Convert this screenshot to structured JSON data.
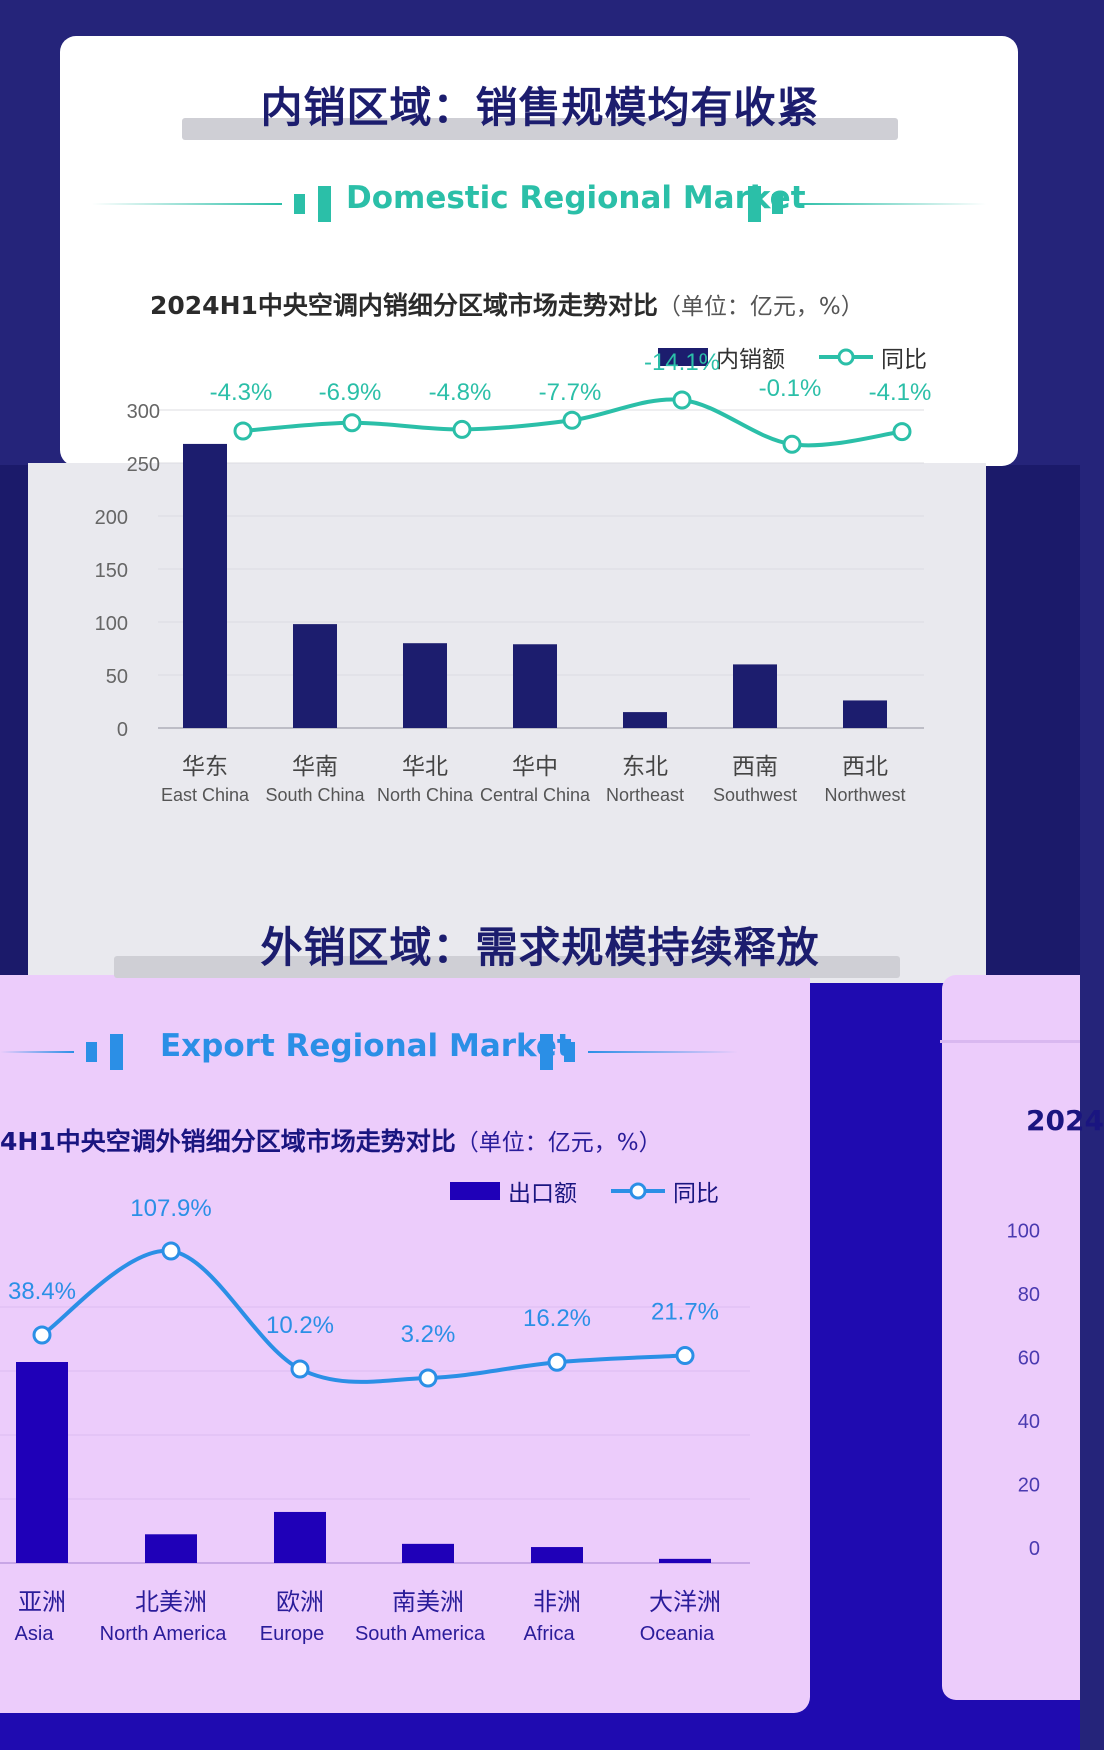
{
  "domestic": {
    "heading": "内销区域：销售规模均有收紧",
    "subheading": "Domestic Regional Market",
    "chart_title": "2024H1中央空调内销细分区域市场走势对比",
    "chart_unit": "（单位：亿元，%）",
    "legend_bar": "内销额",
    "legend_line": "同比"
  },
  "export": {
    "heading": "外销区域：需求规模持续释放",
    "subheading": "Export Regional Market",
    "chart_title": "4H1中央空调外销细分区域市场走势对比",
    "chart_unit": "（单位：亿元，%）",
    "legend_bar": "出口额",
    "legend_line": "同比",
    "right_title": "2024"
  },
  "colors": {
    "domestic_bar": "#1c1d6e",
    "domestic_line": "#2bbfa8",
    "export_bar": "#1f00b8",
    "export_line": "#2b8fe6"
  },
  "chart_data": [
    {
      "type": "bar",
      "ylim": [
        0,
        300
      ],
      "yticks": [
        0,
        50,
        100,
        150,
        200,
        250,
        300
      ],
      "grid": true,
      "legend": "top-right",
      "categories": [
        {
          "cn": "华东",
          "en": "East China"
        },
        {
          "cn": "华南",
          "en": "South China"
        },
        {
          "cn": "华北",
          "en": "North China"
        },
        {
          "cn": "华中",
          "en": "Central China"
        },
        {
          "cn": "东北",
          "en": "Northeast"
        },
        {
          "cn": "西南",
          "en": "Southwest"
        },
        {
          "cn": "西北",
          "en": "Northwest"
        }
      ],
      "series": [
        {
          "name": "内销额",
          "values": [
            268,
            98,
            80,
            79,
            15,
            60,
            26
          ]
        },
        {
          "name": "同比",
          "values": [
            -4.3,
            -6.9,
            -4.8,
            -7.7,
            -14.1,
            -0.1,
            -4.1
          ],
          "labels": [
            "-4.3%",
            "-6.9%",
            "-4.8%",
            "-7.7%",
            "-14.1%",
            "-0.1%",
            "-4.1%"
          ]
        }
      ]
    },
    {
      "type": "bar",
      "legend": "top-right",
      "categories": [
        {
          "cn": "亚洲",
          "en": "Asia"
        },
        {
          "cn": "北美洲",
          "en": "North America"
        },
        {
          "cn": "欧洲",
          "en": "Europe"
        },
        {
          "cn": "南美洲",
          "en": "South America"
        },
        {
          "cn": "非洲",
          "en": "Africa"
        },
        {
          "cn": "大洋洲",
          "en": "Oceania"
        }
      ],
      "series": [
        {
          "name": "出口额",
          "values": [
            63,
            9,
            16,
            6,
            5,
            1.3
          ]
        },
        {
          "name": "同比",
          "values": [
            38.4,
            107.9,
            10.2,
            3.2,
            16.2,
            21.7
          ],
          "labels": [
            "38.4%",
            "107.9%",
            "10.2%",
            "3.2%",
            "16.2%",
            "21.7%"
          ]
        }
      ]
    },
    {
      "type": "bar",
      "ylim": [
        0,
        100
      ],
      "yticks": [
        0,
        20,
        40,
        60,
        80,
        100
      ]
    }
  ]
}
